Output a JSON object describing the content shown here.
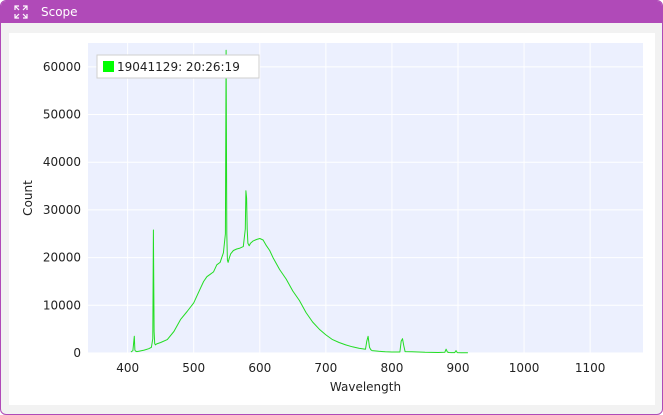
{
  "window": {
    "title": "Scope",
    "title_color": "#b04ab8"
  },
  "chart_data": {
    "type": "line",
    "xlabel": "Wavelength",
    "ylabel": "Count",
    "xlim": [
      340,
      1180
    ],
    "ylim": [
      0,
      65000
    ],
    "x_ticks": [
      400,
      500,
      600,
      700,
      800,
      900,
      1000,
      1100
    ],
    "y_ticks": [
      0,
      10000,
      20000,
      30000,
      40000,
      50000,
      60000
    ],
    "grid": true,
    "plot_background": "#ecf0fe",
    "legend_position": "top-left",
    "series": [
      {
        "name": "19041129:  20:26:19",
        "color": "#22dd22",
        "x": [
          405,
          408,
          410,
          411,
          412,
          414,
          418,
          425,
          432,
          436,
          438,
          439,
          440,
          441,
          442,
          444,
          450,
          460,
          470,
          480,
          490,
          500,
          510,
          515,
          520,
          525,
          530,
          535,
          540,
          545,
          548,
          549,
          550,
          551,
          552,
          554,
          556,
          560,
          565,
          570,
          575,
          578,
          579,
          580,
          581,
          582,
          584,
          586,
          590,
          595,
          600,
          605,
          610,
          615,
          620,
          630,
          640,
          650,
          660,
          670,
          680,
          690,
          700,
          710,
          720,
          730,
          740,
          750,
          760,
          762,
          764,
          766,
          768,
          770,
          780,
          790,
          800,
          812,
          814,
          816,
          818,
          820,
          830,
          840,
          850,
          860,
          870,
          880,
          882,
          884,
          886,
          890,
          895,
          897,
          899,
          905,
          915
        ],
        "y": [
          200,
          500,
          3500,
          600,
          400,
          300,
          400,
          600,
          900,
          1200,
          3000,
          25800,
          4500,
          2000,
          1700,
          1900,
          2200,
          2800,
          4500,
          7000,
          8700,
          10500,
          13500,
          15000,
          16000,
          16500,
          17000,
          18500,
          19000,
          21000,
          25000,
          63500,
          25000,
          19500,
          19000,
          20000,
          20800,
          21500,
          21800,
          22000,
          22300,
          26000,
          34000,
          32500,
          26000,
          23000,
          22500,
          23000,
          23500,
          23800,
          24000,
          23700,
          22500,
          21500,
          20000,
          17500,
          15500,
          13000,
          11000,
          8500,
          6500,
          5000,
          3800,
          2800,
          2200,
          1700,
          1300,
          1000,
          800,
          2500,
          3500,
          1200,
          700,
          500,
          350,
          250,
          200,
          200,
          2500,
          3000,
          1500,
          300,
          250,
          200,
          150,
          120,
          100,
          150,
          800,
          200,
          100,
          80,
          80,
          500,
          80,
          60,
          40
        ]
      }
    ]
  }
}
